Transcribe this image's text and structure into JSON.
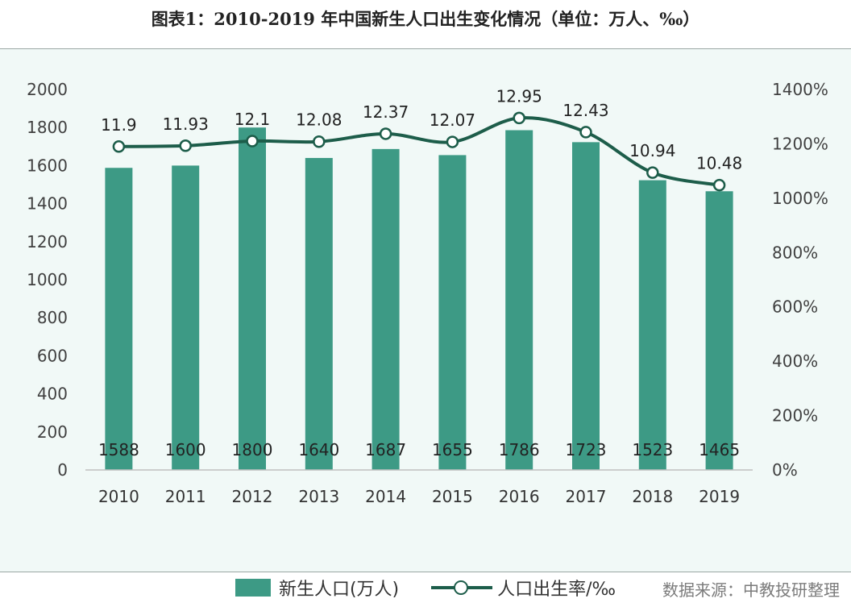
{
  "title": "图表1：2010-2019 年中国新生人口出生变化情况（单位：万人、‰）",
  "source": "数据来源：中教投研整理",
  "colors": {
    "bar": "#3d9a85",
    "line": "#1d5d4a",
    "panel": "#f1f9f7"
  },
  "chart_data": {
    "type": "bar+line",
    "categories": [
      "2010",
      "2011",
      "2012",
      "2013",
      "2014",
      "2015",
      "2016",
      "2017",
      "2018",
      "2019"
    ],
    "series": [
      {
        "name": "新生人口(万人)",
        "type": "bar",
        "axis": "left",
        "values": [
          1588,
          1600,
          1800,
          1640,
          1687,
          1655,
          1786,
          1723,
          1523,
          1465
        ],
        "labels": [
          "1588",
          "1600",
          "1800",
          "1640",
          "1687",
          "1655",
          "1786",
          "1723",
          "1523",
          "1465"
        ]
      },
      {
        "name": "人口出生率/‰",
        "type": "line",
        "axis": "right",
        "values": [
          11.9,
          11.93,
          12.1,
          12.08,
          12.37,
          12.07,
          12.95,
          12.43,
          10.94,
          10.48
        ],
        "labels": [
          "11.9",
          "11.93",
          "12.1",
          "12.08",
          "12.37",
          "12.07",
          "12.95",
          "12.43",
          "10.94",
          "10.48"
        ]
      }
    ],
    "y_left": {
      "min": 0,
      "max": 2000,
      "ticks": [
        "0",
        "200",
        "400",
        "600",
        "800",
        "1000",
        "1200",
        "1400",
        "1600",
        "1800",
        "2000"
      ]
    },
    "y_right": {
      "min": 0,
      "max": 14,
      "ticks": [
        "0%",
        "200%",
        "400%",
        "600%",
        "800%",
        "1000%",
        "1200%",
        "1400%"
      ]
    },
    "grid": false,
    "legend": "bottom-center"
  }
}
